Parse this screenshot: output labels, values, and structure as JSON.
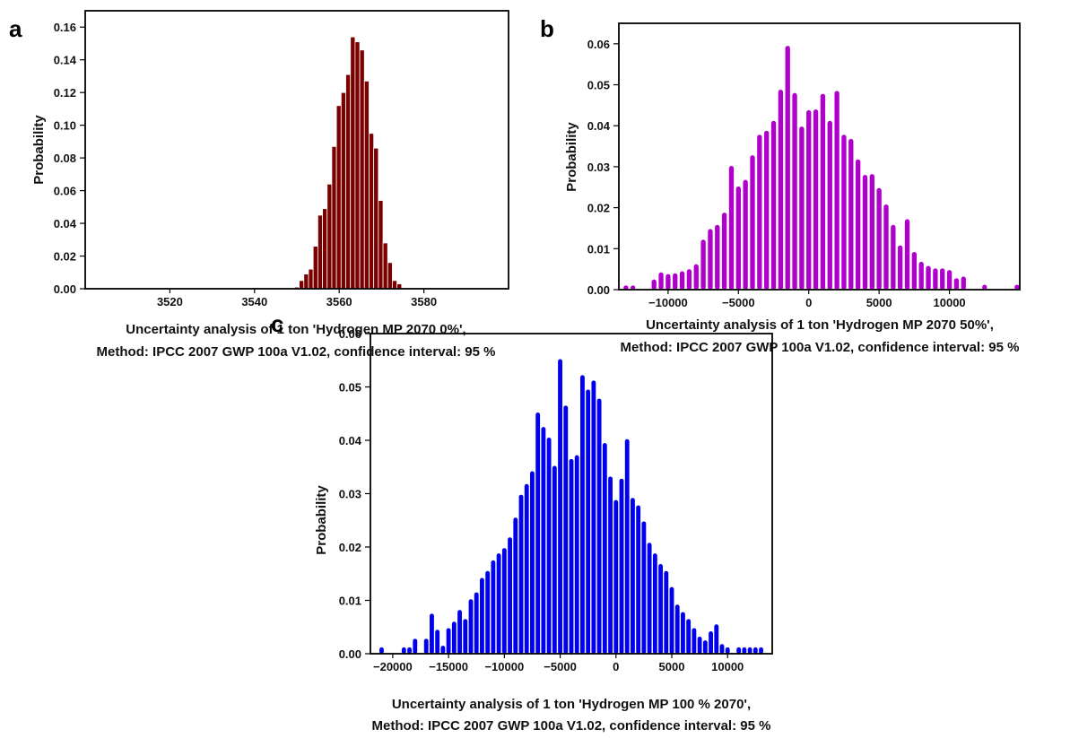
{
  "chart_data": [
    {
      "panel": "a",
      "type": "bar",
      "ylabel": "Probability",
      "xlabel_lines": [
        "Uncertainty analysis of 1 ton 'Hydrogen MP 2070 0%',",
        "Method: IPCC 2007 GWP 100a V1.02, confidence interval: 95 %"
      ],
      "xlim": [
        3500,
        3600
      ],
      "ylim": [
        0,
        0.17
      ],
      "xticks": [
        3520,
        3540,
        3560,
        3580
      ],
      "yticks": [
        0.0,
        0.02,
        0.04,
        0.06,
        0.08,
        0.1,
        0.12,
        0.14,
        0.16
      ],
      "ytick_labels": [
        "0.00",
        "0.02",
        "0.04",
        "0.06",
        "0.08",
        "0.10",
        "0.12",
        "0.14",
        "0.16"
      ],
      "bar_width": 1.1,
      "color": "#7b0000",
      "edge_color": "#ffffff",
      "x": [
        3550,
        3551.1,
        3552.2,
        3553.3,
        3554.4,
        3555.5,
        3556.6,
        3557.7,
        3558.8,
        3559.9,
        3561.0,
        3562.1,
        3563.2,
        3564.3,
        3565.4,
        3566.5,
        3567.6,
        3568.7,
        3569.8,
        3570.9,
        3572.0,
        3573.1,
        3574.2
      ],
      "values": [
        0.001,
        0.005,
        0.009,
        0.012,
        0.026,
        0.045,
        0.049,
        0.064,
        0.087,
        0.112,
        0.12,
        0.131,
        0.154,
        0.151,
        0.146,
        0.127,
        0.095,
        0.086,
        0.054,
        0.028,
        0.016,
        0.005,
        0.003
      ]
    },
    {
      "panel": "b",
      "type": "bar",
      "ylabel": "Probability",
      "xlabel_lines": [
        "Uncertainty analysis of 1 ton 'Hydrogen MP 2070 50%',",
        "Method: IPCC 2007 GWP 100a V1.02, confidence interval: 95 %"
      ],
      "xlim": [
        -13500,
        15000
      ],
      "ylim": [
        0,
        0.065
      ],
      "xticks": [
        -10000,
        -5000,
        0,
        5000,
        10000
      ],
      "xtick_labels": [
        "−10000",
        "−5000",
        "0",
        "5000",
        "10000"
      ],
      "yticks": [
        0.0,
        0.01,
        0.02,
        0.03,
        0.04,
        0.05,
        0.06
      ],
      "ytick_labels": [
        "0.00",
        "0.01",
        "0.02",
        "0.03",
        "0.04",
        "0.05",
        "0.06"
      ],
      "bar_width": 340,
      "color": "#b000cc",
      "x": [
        -13000,
        -12500,
        -11000,
        -10500,
        -10000,
        -9500,
        -9000,
        -8500,
        -8000,
        -7500,
        -7000,
        -6500,
        -6000,
        -5500,
        -5000,
        -4500,
        -4000,
        -3500,
        -3000,
        -2500,
        -2000,
        -1500,
        -1000,
        -500,
        0,
        500,
        1000,
        1500,
        2000,
        2500,
        3000,
        3500,
        4000,
        4500,
        5000,
        5500,
        6000,
        6500,
        7000,
        7500,
        8000,
        8500,
        9000,
        9500,
        10000,
        10500,
        11000,
        12500,
        14800
      ],
      "values": [
        0.001,
        0.001,
        0.0025,
        0.0042,
        0.0038,
        0.004,
        0.0045,
        0.005,
        0.0062,
        0.0122,
        0.0148,
        0.0158,
        0.0188,
        0.0302,
        0.0252,
        0.0268,
        0.0328,
        0.0378,
        0.0388,
        0.0412,
        0.0488,
        0.0595,
        0.048,
        0.0398,
        0.0438,
        0.044,
        0.0478,
        0.0412,
        0.0485,
        0.0378,
        0.0368,
        0.0318,
        0.028,
        0.0282,
        0.0248,
        0.0208,
        0.0158,
        0.0108,
        0.0172,
        0.0092,
        0.0068,
        0.0058,
        0.0052,
        0.0052,
        0.0048,
        0.0028,
        0.0032,
        0.0012,
        0.0012
      ]
    },
    {
      "panel": "c",
      "type": "bar",
      "ylabel": "Probability",
      "xlabel_lines": [
        "Uncertainty analysis of 1 ton 'Hydrogen MP 100 % 2070',",
        "Method: IPCC 2007 GWP 100a V1.02, confidence interval: 95 %"
      ],
      "xlim": [
        -22000,
        14000
      ],
      "ylim": [
        0,
        0.06
      ],
      "xticks": [
        -20000,
        -15000,
        -10000,
        -5000,
        0,
        5000,
        10000
      ],
      "xtick_labels": [
        "−20000",
        "−15000",
        "−10000",
        "−5000",
        "0",
        "5000",
        "10000"
      ],
      "yticks": [
        0.0,
        0.01,
        0.02,
        0.03,
        0.04,
        0.05,
        0.06
      ],
      "ytick_labels": [
        "0.00",
        "0.01",
        "0.02",
        "0.03",
        "0.04",
        "0.05",
        "0.06"
      ],
      "bar_width": 390,
      "color": "#0000ee",
      "x": [
        -21000,
        -19000,
        -18500,
        -18000,
        -17000,
        -16500,
        -16000,
        -15500,
        -15000,
        -14500,
        -14000,
        -13500,
        -13000,
        -12500,
        -12000,
        -11500,
        -11000,
        -10500,
        -10000,
        -9500,
        -9000,
        -8500,
        -8000,
        -7500,
        -7000,
        -6500,
        -6000,
        -5500,
        -5000,
        -4500,
        -4000,
        -3500,
        -3000,
        -2500,
        -2000,
        -1500,
        -1000,
        -500,
        0,
        500,
        1000,
        1500,
        2000,
        2500,
        3000,
        3500,
        4000,
        4500,
        5000,
        5500,
        6000,
        6500,
        7000,
        7500,
        8000,
        8500,
        9000,
        9500,
        10000,
        11000,
        11500,
        12000,
        12500,
        13000
      ],
      "values": [
        0.0012,
        0.0012,
        0.0012,
        0.0028,
        0.0028,
        0.0075,
        0.0045,
        0.0015,
        0.0048,
        0.006,
        0.0082,
        0.0065,
        0.0102,
        0.0115,
        0.0142,
        0.0155,
        0.0175,
        0.0188,
        0.0198,
        0.0218,
        0.0255,
        0.0298,
        0.0318,
        0.0342,
        0.0452,
        0.0425,
        0.0405,
        0.0352,
        0.0552,
        0.0465,
        0.0365,
        0.0372,
        0.0522,
        0.0495,
        0.0512,
        0.0478,
        0.0395,
        0.0332,
        0.0288,
        0.0328,
        0.0402,
        0.0292,
        0.0278,
        0.0248,
        0.0208,
        0.0188,
        0.0168,
        0.0155,
        0.0125,
        0.0092,
        0.0078,
        0.0065,
        0.0048,
        0.0032,
        0.0025,
        0.0042,
        0.0055,
        0.0018,
        0.0012,
        0.0012,
        0.0012,
        0.0012,
        0.0012,
        0.0012
      ]
    }
  ]
}
